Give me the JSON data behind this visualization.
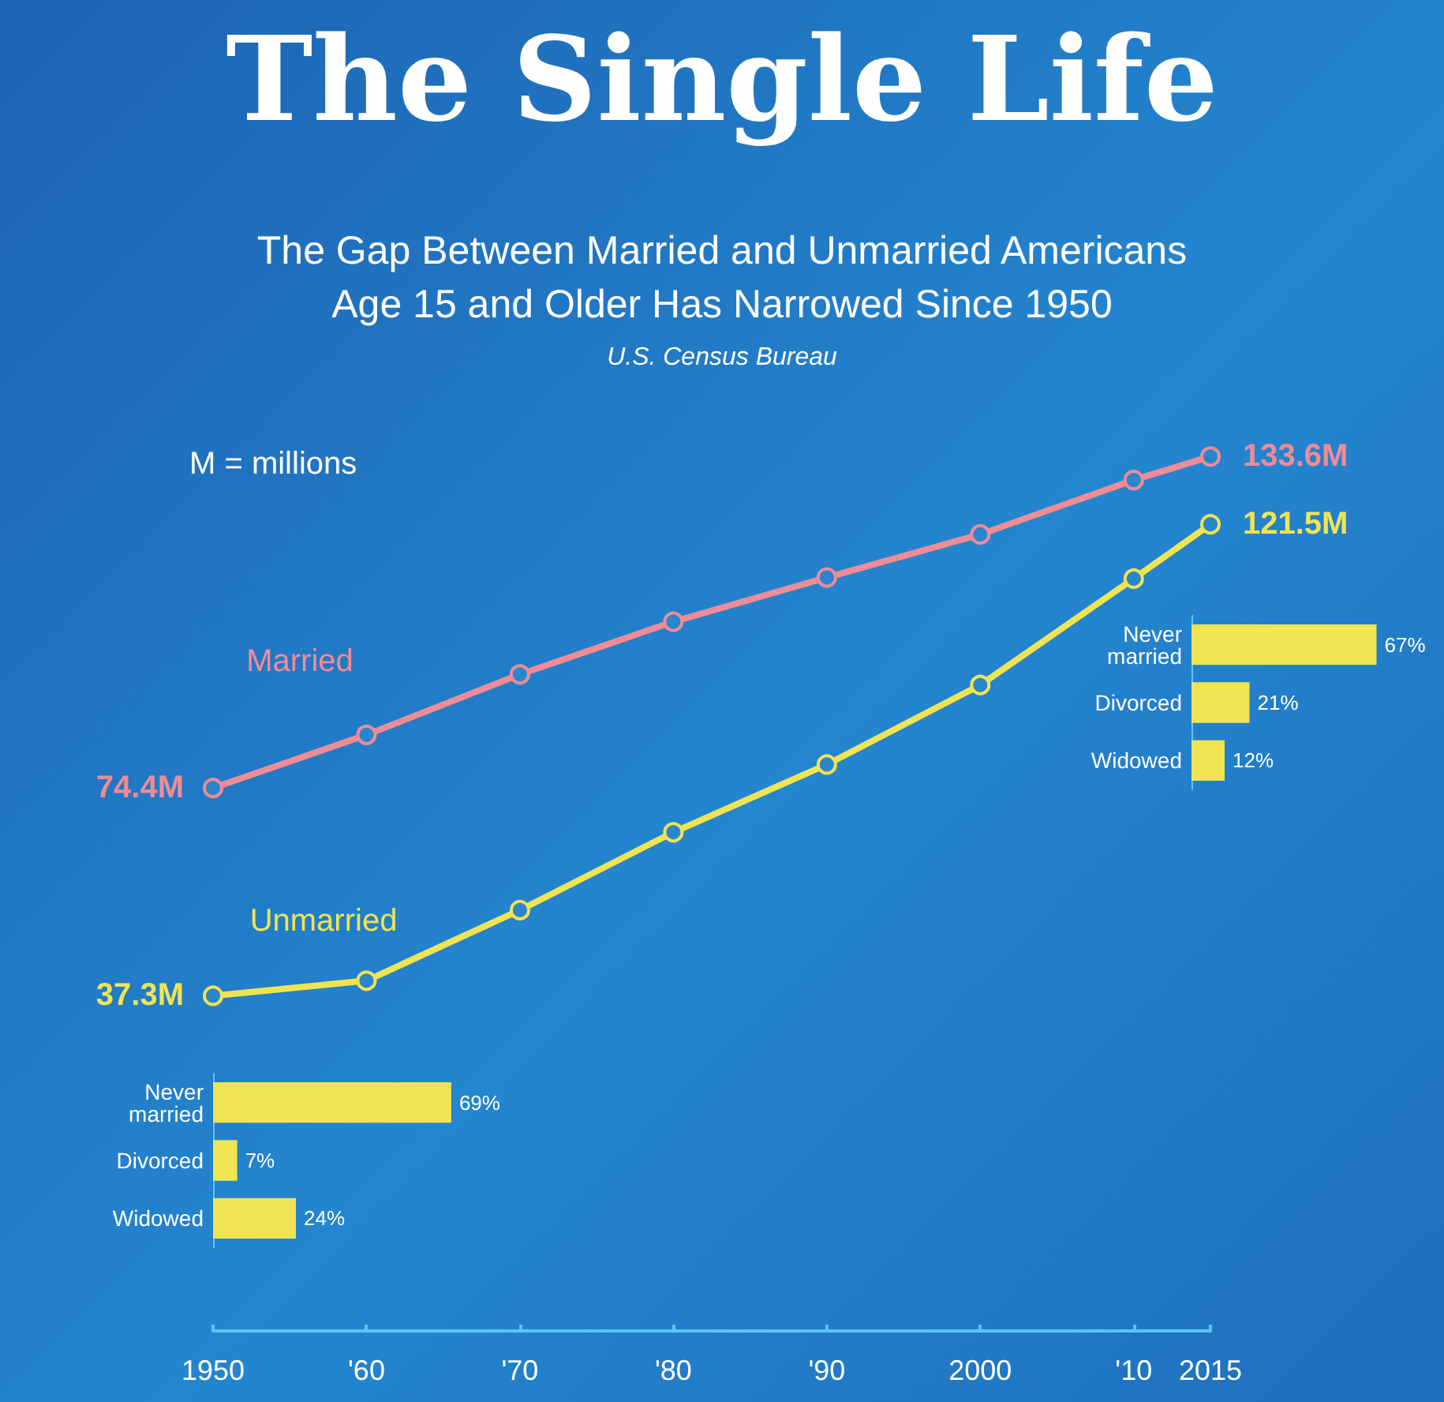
{
  "chart_data": [
    {
      "type": "line",
      "title": "The Single Life",
      "subtitle": "The Gap Between Married and Unmarried Americans\nAge 15 and Older Has Narrowed Since 1950",
      "annotations": [
        "U.S. Census Bureau",
        "M = millions"
      ],
      "x": [
        1950,
        1960,
        1970,
        1980,
        1990,
        2000,
        2010,
        2015
      ],
      "xlim": [
        1950,
        2015
      ],
      "xticks": [
        1950,
        {
          "value": 1960,
          "label": "'60"
        },
        {
          "value": 1970,
          "label": "'70"
        },
        {
          "value": 1980,
          "label": "'80"
        },
        {
          "value": 1990,
          "label": "'90"
        },
        2000,
        {
          "value": 2010,
          "label": "'10"
        },
        2015
      ],
      "tick_labels": "x",
      "marker": "circle",
      "line_style": "solid",
      "series": [
        {
          "name": "Married",
          "color": "#f08c96",
          "values": [
            74.4,
            83.9,
            94.7,
            104.1,
            112.0,
            119.7,
            129.4,
            133.6
          ],
          "value_labels": [
            "74.4M",
            null,
            null,
            null,
            null,
            null,
            null,
            "133.6M"
          ]
        },
        {
          "name": "Unmarried",
          "color": "#f0e452",
          "values": [
            37.3,
            40.0,
            52.6,
            66.5,
            78.6,
            92.8,
            111.8,
            121.5
          ],
          "value_labels": [
            "37.3M",
            null,
            null,
            null,
            null,
            null,
            null,
            "121.5M"
          ]
        }
      ]
    },
    {
      "type": "bar",
      "orientation": "horizontal",
      "categories": [
        "Never\nmarried",
        "Divorced",
        "Widowed"
      ],
      "values": [
        69,
        7,
        24
      ],
      "value_labels": [
        "69%",
        "7%",
        "24%"
      ],
      "color": "#f0e452"
    },
    {
      "type": "bar",
      "orientation": "horizontal",
      "categories": [
        "Never\nmarried",
        "Divorced",
        "Widowed"
      ],
      "values": [
        67,
        21,
        12
      ],
      "value_labels": [
        "67%",
        "21%",
        "12%"
      ],
      "color": "#f0e452"
    }
  ]
}
